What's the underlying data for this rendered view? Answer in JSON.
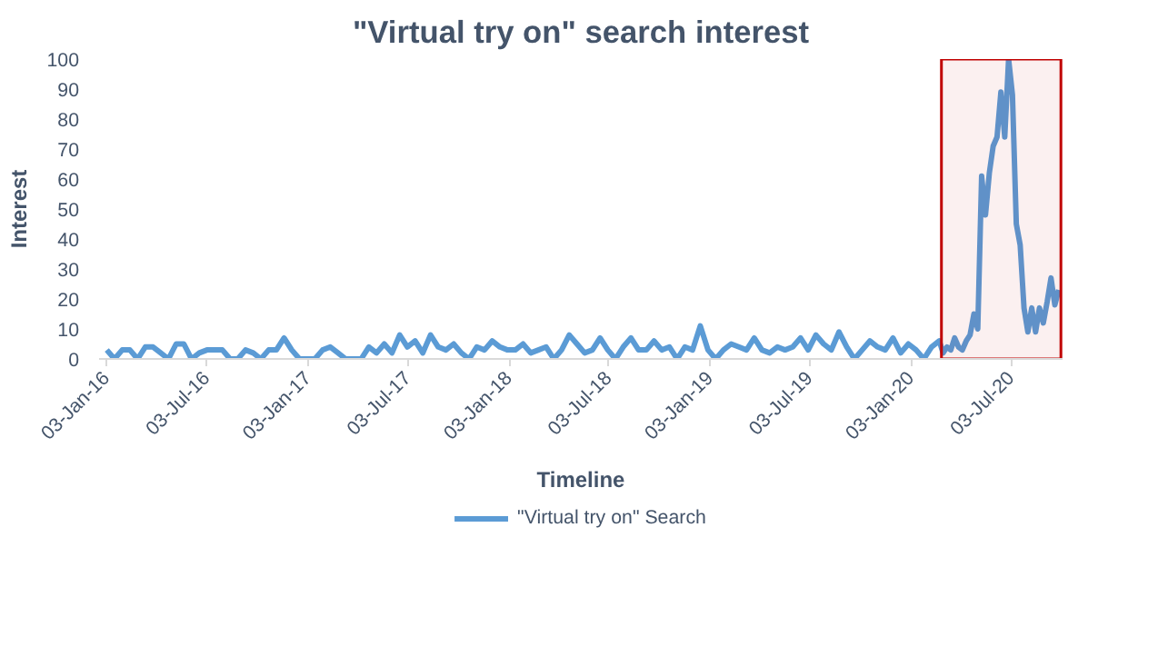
{
  "chart_data": {
    "type": "line",
    "title": "\"Virtual try on\" search interest",
    "xlabel": "Timeline",
    "ylabel": "Interest",
    "x": [
      "2016-01-03",
      "2016-01-17",
      "2016-01-31",
      "2016-02-14",
      "2016-02-28",
      "2016-03-13",
      "2016-03-27",
      "2016-04-10",
      "2016-04-24",
      "2016-05-08",
      "2016-05-22",
      "2016-06-05",
      "2016-06-19",
      "2016-07-03",
      "2016-07-17",
      "2016-07-31",
      "2016-08-14",
      "2016-08-28",
      "2016-09-11",
      "2016-09-25",
      "2016-10-09",
      "2016-10-23",
      "2016-11-06",
      "2016-11-20",
      "2016-12-04",
      "2016-12-18",
      "2017-01-01",
      "2017-01-15",
      "2017-01-29",
      "2017-02-12",
      "2017-02-26",
      "2017-03-12",
      "2017-03-26",
      "2017-04-09",
      "2017-04-23",
      "2017-05-07",
      "2017-05-21",
      "2017-06-04",
      "2017-06-18",
      "2017-07-02",
      "2017-07-16",
      "2017-07-30",
      "2017-08-13",
      "2017-08-27",
      "2017-09-10",
      "2017-09-24",
      "2017-10-08",
      "2017-10-22",
      "2017-11-05",
      "2017-11-19",
      "2017-12-03",
      "2017-12-17",
      "2017-12-31",
      "2018-01-14",
      "2018-01-28",
      "2018-02-11",
      "2018-02-25",
      "2018-03-11",
      "2018-03-25",
      "2018-04-08",
      "2018-04-22",
      "2018-05-06",
      "2018-05-20",
      "2018-06-03",
      "2018-06-17",
      "2018-07-01",
      "2018-07-15",
      "2018-07-29",
      "2018-08-12",
      "2018-08-26",
      "2018-09-09",
      "2018-09-23",
      "2018-10-07",
      "2018-10-21",
      "2018-11-04",
      "2018-11-18",
      "2018-12-02",
      "2018-12-16",
      "2018-12-30",
      "2019-01-13",
      "2019-01-27",
      "2019-02-10",
      "2019-02-24",
      "2019-03-10",
      "2019-03-24",
      "2019-04-07",
      "2019-04-21",
      "2019-05-05",
      "2019-05-19",
      "2019-06-02",
      "2019-06-16",
      "2019-06-30",
      "2019-07-14",
      "2019-07-28",
      "2019-08-11",
      "2019-08-25",
      "2019-09-08",
      "2019-09-22",
      "2019-10-06",
      "2019-10-20",
      "2019-11-03",
      "2019-11-17",
      "2019-12-01",
      "2019-12-15",
      "2019-12-29",
      "2020-01-12",
      "2020-01-26",
      "2020-02-09",
      "2020-02-23",
      "2020-03-01",
      "2020-03-08",
      "2020-03-15",
      "2020-03-22",
      "2020-03-29",
      "2020-04-05",
      "2020-04-12",
      "2020-04-19",
      "2020-04-26",
      "2020-05-03",
      "2020-05-10",
      "2020-05-17",
      "2020-05-24",
      "2020-05-31",
      "2020-06-07",
      "2020-06-14",
      "2020-06-21",
      "2020-06-28",
      "2020-07-05",
      "2020-07-12",
      "2020-07-19",
      "2020-07-26",
      "2020-08-02",
      "2020-08-09",
      "2020-08-16",
      "2020-08-23",
      "2020-08-30",
      "2020-09-06",
      "2020-09-13",
      "2020-09-20",
      "2020-09-27"
    ],
    "series": [
      {
        "name": "\"Virtual try on\" Search",
        "color": "#5b9bd5",
        "values": [
          3,
          0,
          3,
          3,
          0,
          4,
          4,
          2,
          0,
          5,
          5,
          0,
          2,
          3,
          3,
          3,
          0,
          0,
          3,
          2,
          0,
          3,
          3,
          7,
          3,
          0,
          0,
          0,
          3,
          4,
          2,
          0,
          0,
          0,
          4,
          2,
          5,
          2,
          8,
          4,
          6,
          2,
          8,
          4,
          3,
          5,
          2,
          0,
          4,
          3,
          6,
          4,
          3,
          3,
          5,
          2,
          3,
          4,
          0,
          3,
          8,
          5,
          2,
          3,
          7,
          3,
          0,
          4,
          7,
          3,
          3,
          6,
          3,
          4,
          0,
          4,
          3,
          11,
          3,
          0,
          3,
          5,
          4,
          3,
          7,
          3,
          2,
          4,
          3,
          4,
          7,
          3,
          8,
          5,
          3,
          9,
          4,
          0,
          3,
          6,
          4,
          3,
          7,
          2,
          5,
          3,
          0,
          4,
          6,
          2,
          4,
          3,
          7,
          4,
          3,
          6,
          8,
          15,
          10,
          61,
          48,
          62,
          71,
          74,
          89,
          74,
          100,
          88,
          45,
          38,
          17,
          9,
          17,
          9,
          17,
          12,
          19,
          27,
          18,
          23
        ]
      }
    ],
    "xlim": [
      "2015-12-20",
      "2020-10-04"
    ],
    "ylim": [
      0,
      100
    ],
    "xticks": [
      {
        "value": "2016-01-03",
        "label": "03-Jan-16"
      },
      {
        "value": "2016-07-03",
        "label": "03-Jul-16"
      },
      {
        "value": "2017-01-03",
        "label": "03-Jan-17"
      },
      {
        "value": "2017-07-03",
        "label": "03-Jul-17"
      },
      {
        "value": "2018-01-03",
        "label": "03-Jan-18"
      },
      {
        "value": "2018-07-03",
        "label": "03-Jul-18"
      },
      {
        "value": "2019-01-03",
        "label": "03-Jan-19"
      },
      {
        "value": "2019-07-03",
        "label": "03-Jul-19"
      },
      {
        "value": "2020-01-03",
        "label": "03-Jan-20"
      },
      {
        "value": "2020-07-03",
        "label": "03-Jul-20"
      }
    ],
    "yticks": [
      0,
      10,
      20,
      30,
      40,
      50,
      60,
      70,
      80,
      90,
      100
    ],
    "bands": [
      {
        "axis": "x",
        "from": "2020-02-27",
        "to": "2020-10-01",
        "color": "#c00000"
      }
    ],
    "legend": "bottom",
    "grid": false,
    "line_style": "solid"
  }
}
